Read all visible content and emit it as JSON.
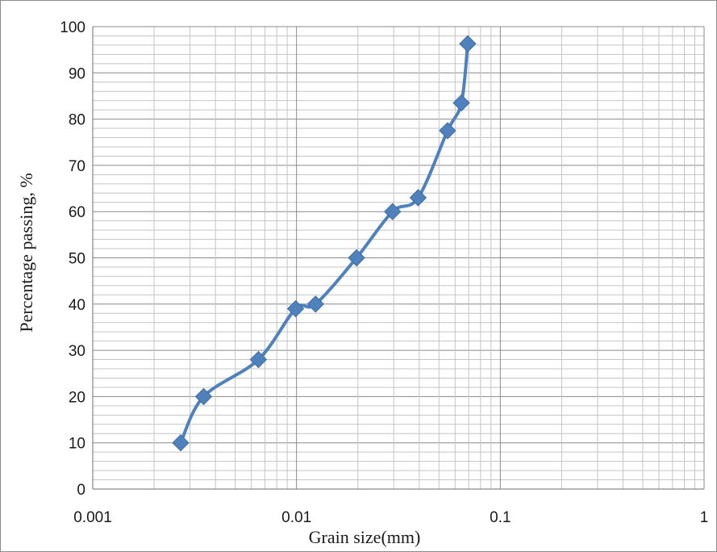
{
  "chart_data": {
    "type": "line",
    "title": "",
    "xlabel": "Grain size(mm)",
    "ylabel": "Percentage passing, %",
    "x_scale": "log",
    "xlim": [
      0.001,
      1
    ],
    "ylim": [
      0,
      100
    ],
    "x_ticks": [
      "0.001",
      "0.01",
      "0.1",
      "1"
    ],
    "y_ticks": [
      "0",
      "10",
      "20",
      "30",
      "40",
      "50",
      "60",
      "70",
      "80",
      "90",
      "100"
    ],
    "grid": true,
    "legend": "none",
    "series": [
      {
        "marker": "diamond",
        "color": "#4f81bd",
        "x": [
          0.0027,
          0.0035,
          0.0065,
          0.0099,
          0.0124,
          0.0197,
          0.0296,
          0.0395,
          0.0551,
          0.0644,
          0.0692
        ],
        "values": [
          10,
          20,
          28,
          39,
          40,
          50,
          60,
          63,
          77.5,
          83.5,
          96.3
        ]
      }
    ]
  }
}
